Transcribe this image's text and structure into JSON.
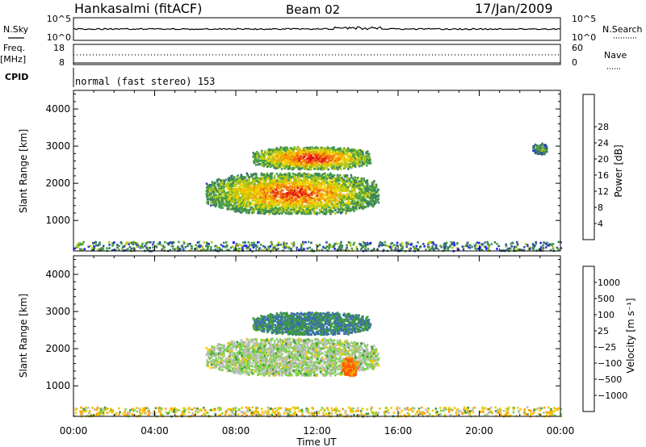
{
  "header": {
    "station": "Hankasalmi (fitACF)",
    "beam": "Beam 02",
    "date": "17/Jan/2009"
  },
  "panels": {
    "nsky_label": "N.Sky",
    "nsky_ticks": [
      "10^5",
      "10^0"
    ],
    "nsearch_label": "N.Search",
    "nsearch_ticks": [
      "10^5",
      "10^0"
    ],
    "freq_label": "Freq.",
    "freq_unit": "[MHz]",
    "freq_ticks": [
      "18",
      "8"
    ],
    "nave_label": "Nave",
    "nave_ticks": [
      "60",
      "0"
    ],
    "cpid_label": "CPID",
    "cpid_text": "normal (fast stereo) 153"
  },
  "colors": {
    "power_scale": [
      "#1a1aff",
      "#2f4f9f",
      "#3c7f5f",
      "#46a046",
      "#b4c814",
      "#f0d200",
      "#f5a000",
      "#f06414",
      "#e61414"
    ],
    "velocity_scale": [
      "#ff1a1a",
      "#ff5a00",
      "#ffa000",
      "#f0c800",
      "#bebebe",
      "#7ad34a",
      "#3c9a3c",
      "#3c6eaf",
      "#2f3fbf"
    ]
  },
  "chart_data": [
    {
      "type": "heatmap",
      "name": "power",
      "title": "",
      "xlabel": "Time UT",
      "ylabel": "Slant Range [km]",
      "xlim": [
        0,
        24
      ],
      "ylim": [
        180,
        4500
      ],
      "x_ticks": [
        "00:00",
        "04:00",
        "08:00",
        "12:00",
        "16:00",
        "20:00",
        "00:00"
      ],
      "y_ticks": [
        "1000",
        "2000",
        "3000",
        "4000"
      ],
      "colorbar_label": "Power [dB]",
      "colorbar_ticks": [
        "4",
        "8",
        "12",
        "16",
        "20",
        "24",
        "28"
      ],
      "clim": [
        0,
        30
      ],
      "echo_regions": [
        {
          "t": [
            6.5,
            15.0
          ],
          "range": [
            1200,
            2300
          ],
          "level": 18
        },
        {
          "t": [
            8.8,
            14.6
          ],
          "range": [
            2400,
            3000
          ],
          "level": 20
        },
        {
          "t": [
            22.6,
            23.3
          ],
          "range": [
            2800,
            3100
          ],
          "level": 8
        },
        {
          "t": [
            0,
            24
          ],
          "range": [
            200,
            450
          ],
          "level": 6
        }
      ]
    },
    {
      "type": "heatmap",
      "name": "velocity",
      "title": "",
      "xlabel": "Time UT",
      "ylabel": "Slant Range [km]",
      "xlim": [
        0,
        24
      ],
      "ylim": [
        180,
        4500
      ],
      "x_ticks": [
        "00:00",
        "04:00",
        "08:00",
        "12:00",
        "16:00",
        "20:00",
        "00:00"
      ],
      "y_ticks": [
        "1000",
        "2000",
        "3000",
        "4000"
      ],
      "colorbar_label": "Velocity [m s⁻¹]",
      "colorbar_ticks": [
        "1000",
        "500",
        "100",
        "25",
        "−25",
        "−100",
        "−500",
        "−1000"
      ],
      "clim": [
        -1000,
        1000
      ],
      "echo_regions": [
        {
          "t": [
            6.5,
            15.0
          ],
          "range": [
            1300,
            2300
          ],
          "velocity": 0
        },
        {
          "t": [
            8.8,
            14.6
          ],
          "range": [
            2400,
            3000
          ],
          "velocity": 100
        },
        {
          "t": [
            13.2,
            14.0
          ],
          "range": [
            1300,
            1800
          ],
          "velocity": -300
        },
        {
          "t": [
            0,
            24
          ],
          "range": [
            200,
            450
          ],
          "velocity": -50
        }
      ]
    }
  ]
}
